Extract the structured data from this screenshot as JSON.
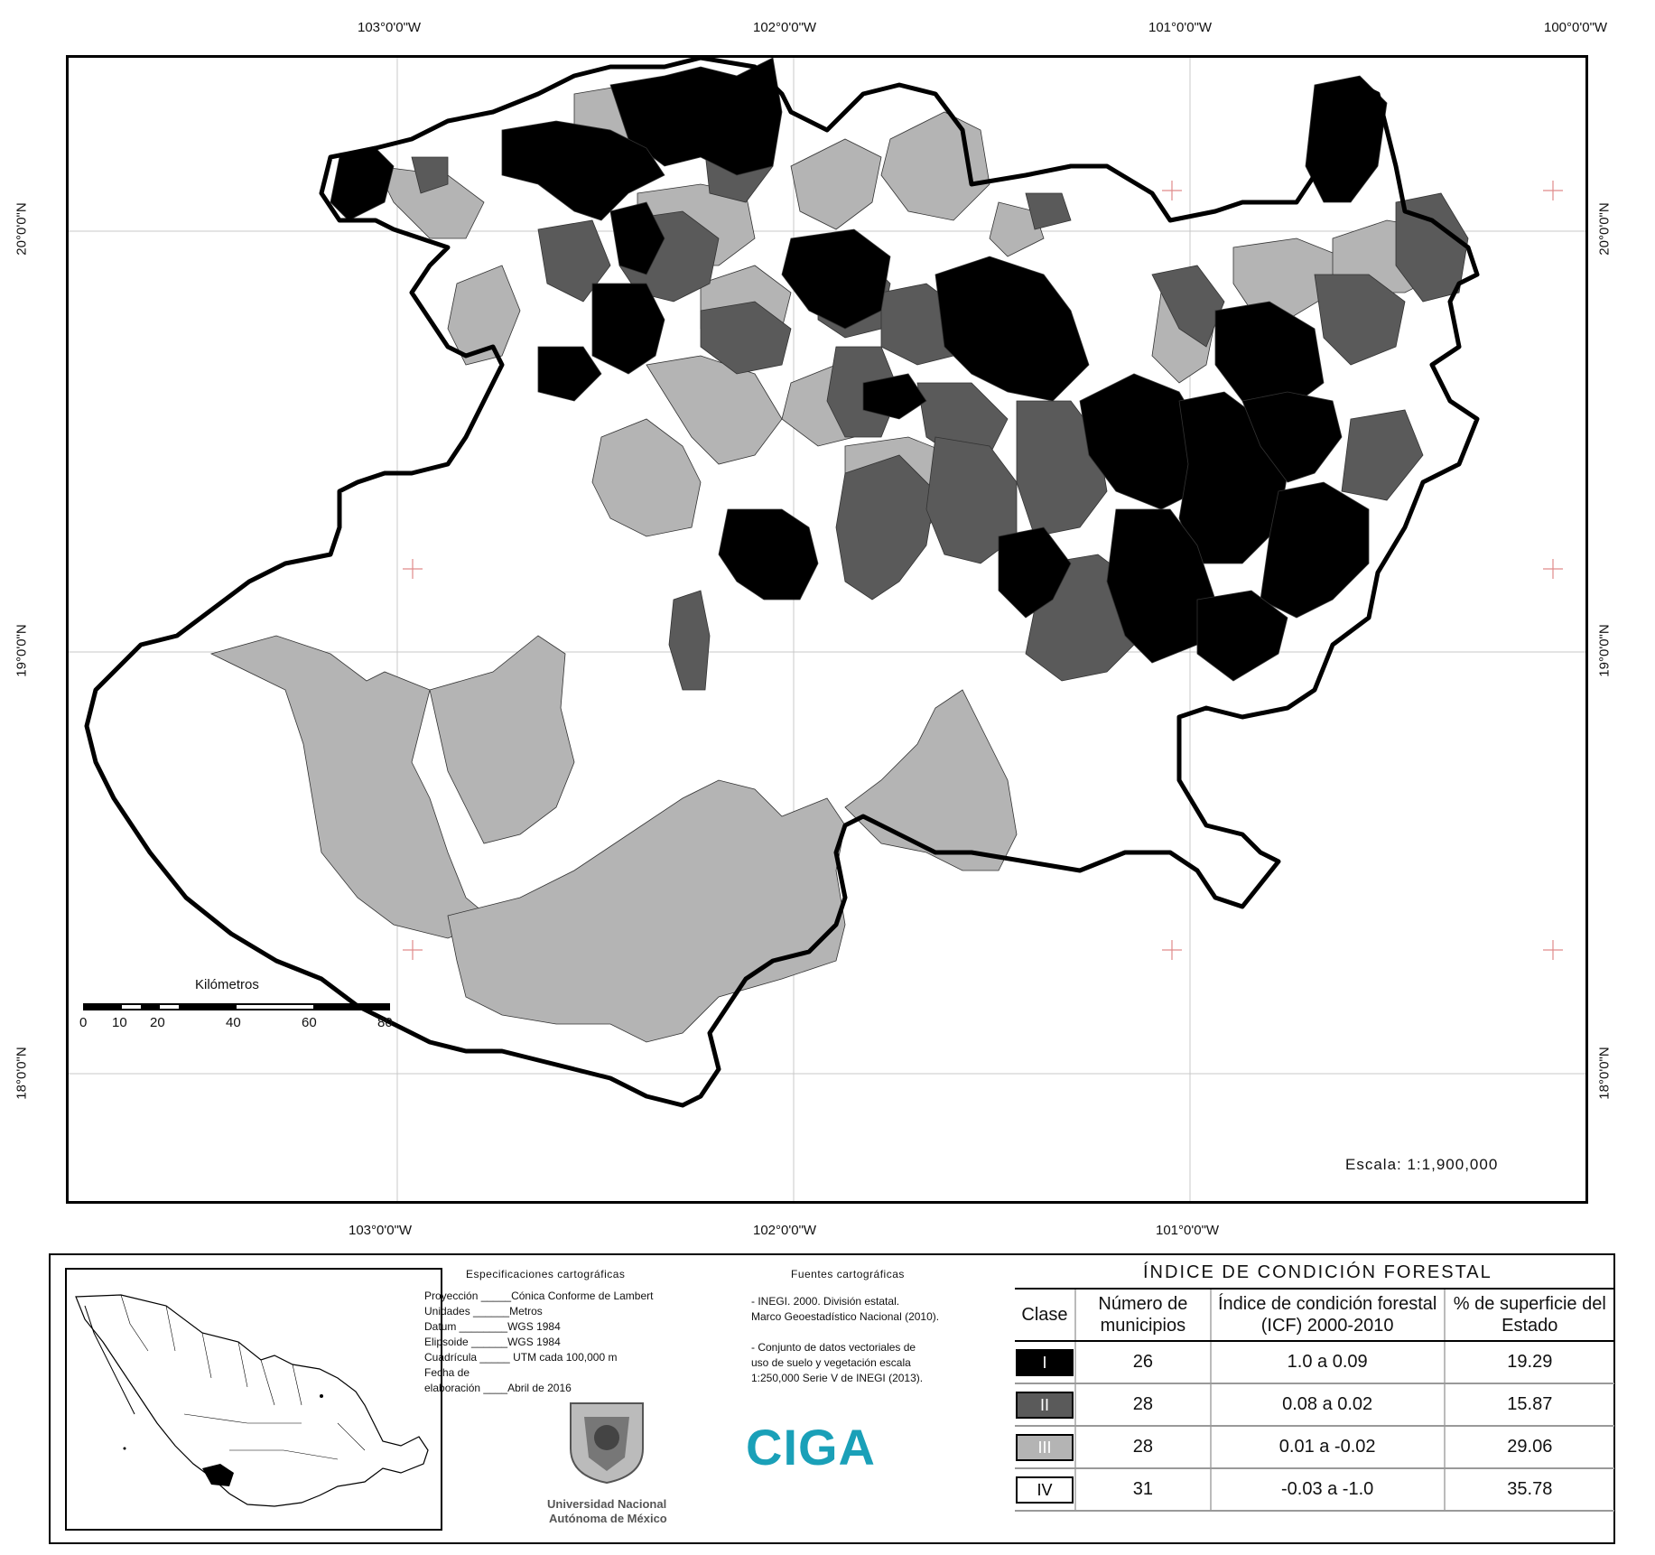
{
  "coordinates": {
    "top": [
      "103°0'0\"W",
      "102°0'0\"W",
      "101°0'0\"W",
      "100°0'0\"W"
    ],
    "bottom": [
      "103°0'0\"W",
      "102°0'0\"W",
      "101°0'0\"W"
    ],
    "left": [
      "20°0'0\"N",
      "19°0'0\"N",
      "18°0'0\"N"
    ],
    "right": [
      "20°0'0\"N",
      "19°0'0\"N",
      "18°0'0\"N"
    ]
  },
  "scalebar": {
    "title": "Kilómetros",
    "ticks": [
      "0",
      "10",
      "20",
      "40",
      "60",
      "80"
    ]
  },
  "scale_text": "Escala: 1:1,900,000",
  "specs": {
    "title": "Especificaciones cartográficas",
    "lines": [
      "Proyección _____Cónica Conforme de Lambert",
      "Unidades ______Metros",
      "Datum ________WGS 1984",
      "Elipsoide ______WGS 1984",
      "Cuadrícula _____ UTM cada 100,000 m",
      "Fecha de",
      "elaboración ____Abril de 2016"
    ]
  },
  "sources": {
    "title": "Fuentes cartográficas",
    "lines": [
      "- INEGI. 2000. División estatal.",
      "Marco Geoestadístico Nacional (2010).",
      "",
      "- Conjunto de datos vectoriales de",
      "uso de suelo y vegetación escala",
      "1:250,000 Serie V de INEGI (2013)."
    ]
  },
  "unam_logo_text": [
    "Universidad Nacional",
    "Autónoma de México"
  ],
  "ciga_logo": "CIGA",
  "legend": {
    "title": "ÍNDICE DE CONDICIÓN FORESTAL",
    "headers": [
      "Clase",
      "Número de municipios",
      "Índice de condición forestal (ICF) 2000-2010",
      "% de superficie del Estado"
    ],
    "rows": [
      {
        "clase": "I",
        "color": "#000000",
        "text_color": "#ffffff",
        "municipios": "26",
        "icf": "1.0 a 0.09",
        "superficie": "19.29"
      },
      {
        "clase": "II",
        "color": "#5a5a5a",
        "text_color": "#ffffff",
        "municipios": "28",
        "icf": "0.08 a 0.02",
        "superficie": "15.87"
      },
      {
        "clase": "III",
        "color": "#b4b4b4",
        "text_color": "#ffffff",
        "municipios": "28",
        "icf": "0.01 a -0.02",
        "superficie": "29.06"
      },
      {
        "clase": "IV",
        "color": "#ffffff",
        "text_color": "#000000",
        "municipios": "31",
        "icf": "-0.03 a -1.0",
        "superficie": "35.78"
      }
    ]
  }
}
